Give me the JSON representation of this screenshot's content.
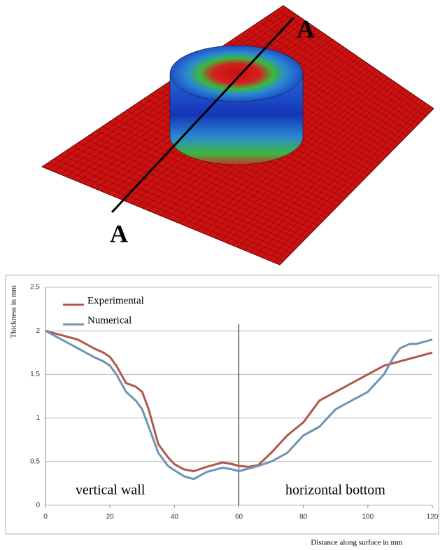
{
  "figure": {
    "section_labels": [
      "A",
      "A"
    ]
  },
  "chart_data": {
    "type": "line",
    "x_label": "Distance along surface in mm",
    "y_label": "Thickness in mm",
    "annotations": [
      "vertical wall",
      "horizontal bottom"
    ],
    "vline": 60,
    "xlim": [
      0,
      120
    ],
    "xticks": [
      0,
      20,
      40,
      60,
      80,
      100,
      120
    ],
    "ylim": [
      0,
      2.5
    ],
    "yticks": [
      0,
      0.5,
      1,
      1.5,
      2,
      2.5
    ],
    "grid": true,
    "legend": "upper left",
    "series": [
      {
        "name": "Experimental",
        "color": "#b0584c",
        "x": [
          0,
          5,
          10,
          15,
          18,
          20,
          22,
          25,
          28,
          30,
          32,
          35,
          38,
          40,
          43,
          46,
          50,
          55,
          58,
          60,
          63,
          66,
          70,
          75,
          80,
          85,
          90,
          95,
          100,
          105,
          110,
          115,
          120
        ],
        "values": [
          2,
          1.95,
          1.9,
          1.8,
          1.75,
          1.7,
          1.6,
          1.4,
          1.36,
          1.3,
          1.1,
          0.7,
          0.55,
          0.47,
          0.41,
          0.39,
          0.44,
          0.49,
          0.47,
          0.45,
          0.44,
          0.46,
          0.6,
          0.8,
          0.95,
          1.2,
          1.3,
          1.4,
          1.5,
          1.6,
          1.65,
          1.7,
          1.75
        ]
      },
      {
        "name": "Numerical",
        "color": "#6f93b3",
        "x": [
          0,
          5,
          10,
          15,
          18,
          20,
          22,
          25,
          28,
          30,
          32,
          35,
          38,
          40,
          43,
          46,
          50,
          55,
          58,
          60,
          63,
          66,
          70,
          75,
          80,
          85,
          90,
          95,
          100,
          105,
          108,
          110,
          113,
          115,
          120
        ],
        "values": [
          2,
          1.9,
          1.8,
          1.7,
          1.65,
          1.6,
          1.5,
          1.3,
          1.2,
          1.1,
          0.9,
          0.6,
          0.45,
          0.4,
          0.33,
          0.3,
          0.38,
          0.43,
          0.41,
          0.39,
          0.42,
          0.45,
          0.5,
          0.6,
          0.8,
          0.9,
          1.1,
          1.2,
          1.3,
          1.5,
          1.7,
          1.8,
          1.85,
          1.85,
          1.9
        ]
      }
    ]
  }
}
